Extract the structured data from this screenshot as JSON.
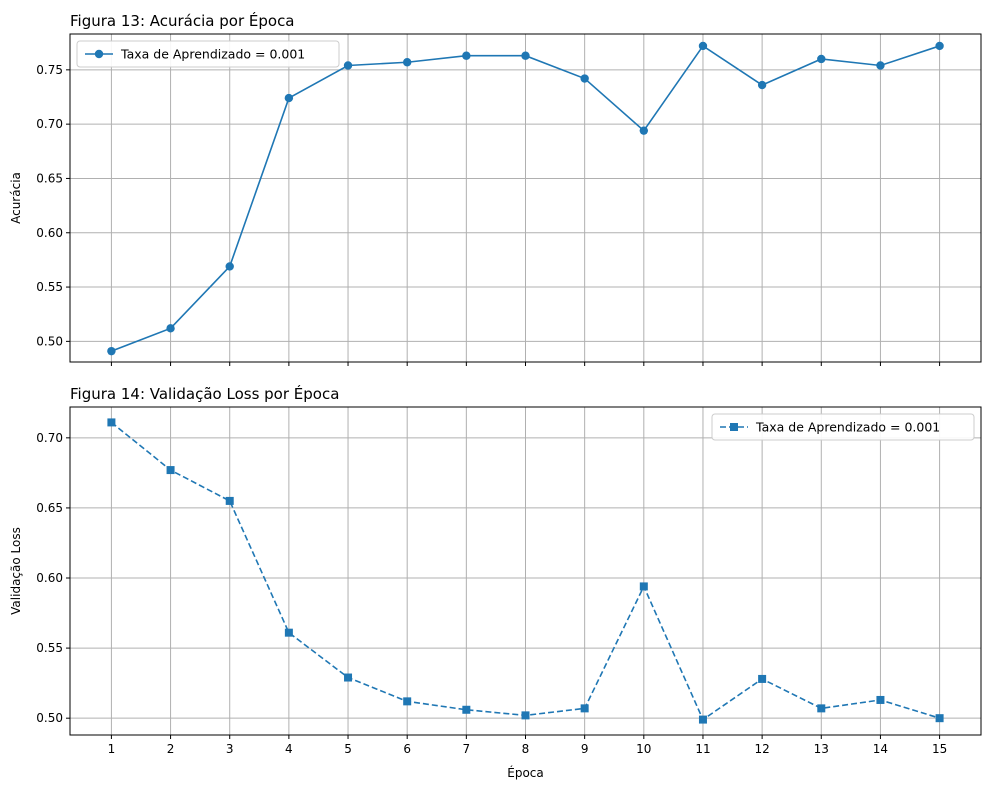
{
  "chart_data": [
    {
      "type": "line",
      "title": "Figura 13: Acurácia por Época",
      "xlabel": "",
      "ylabel": "Acurácia",
      "x": [
        1,
        2,
        3,
        4,
        5,
        6,
        7,
        8,
        9,
        10,
        11,
        12,
        13,
        14,
        15
      ],
      "series": [
        {
          "name": "Taxa de Aprendizado = 0.001",
          "values": [
            0.491,
            0.512,
            0.569,
            0.724,
            0.754,
            0.757,
            0.763,
            0.763,
            0.742,
            0.694,
            0.772,
            0.736,
            0.76,
            0.754,
            0.772
          ],
          "marker": "circle",
          "linestyle": "solid",
          "color": "#1f77b4"
        }
      ],
      "ylim": [
        0.481,
        0.783
      ],
      "yticks": [
        "0.50",
        "0.55",
        "0.60",
        "0.65",
        "0.70",
        "0.75"
      ],
      "ytick_values": [
        0.5,
        0.55,
        0.6,
        0.65,
        0.7,
        0.75
      ],
      "show_xtick_labels": false,
      "grid": true,
      "legend_position": "upper-left"
    },
    {
      "type": "line",
      "title": "Figura 14: Validação Loss por Época",
      "xlabel": "Época",
      "ylabel": "Validação Loss",
      "x": [
        1,
        2,
        3,
        4,
        5,
        6,
        7,
        8,
        9,
        10,
        11,
        12,
        13,
        14,
        15
      ],
      "xtick_labels": [
        "1",
        "2",
        "3",
        "4",
        "5",
        "6",
        "7",
        "8",
        "9",
        "10",
        "11",
        "12",
        "13",
        "14",
        "15"
      ],
      "series": [
        {
          "name": "Taxa de Aprendizado = 0.001",
          "values": [
            0.711,
            0.677,
            0.655,
            0.561,
            0.529,
            0.512,
            0.506,
            0.502,
            0.507,
            0.594,
            0.499,
            0.528,
            0.507,
            0.513,
            0.5
          ],
          "marker": "square",
          "linestyle": "dashed",
          "color": "#1f77b4"
        }
      ],
      "ylim": [
        0.488,
        0.722
      ],
      "yticks": [
        "0.50",
        "0.55",
        "0.60",
        "0.65",
        "0.70"
      ],
      "ytick_values": [
        0.5,
        0.55,
        0.6,
        0.65,
        0.7
      ],
      "show_xtick_labels": true,
      "grid": true,
      "legend_position": "upper-right"
    }
  ]
}
